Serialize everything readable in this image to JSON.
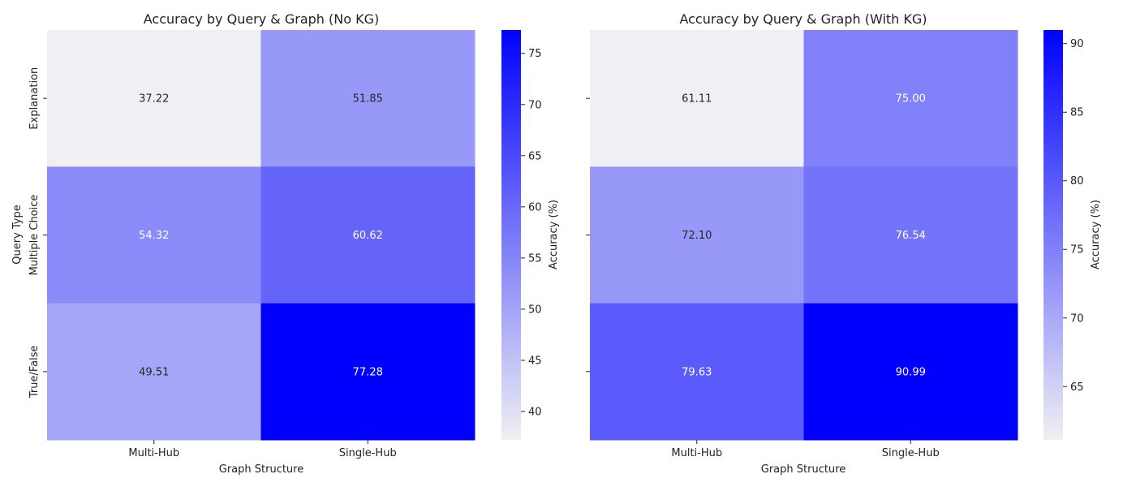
{
  "chart_data": [
    {
      "type": "heatmap",
      "title": "Accuracy by Query & Graph (No KG)",
      "xlabel": "Graph Structure",
      "ylabel": "Query Type",
      "x_categories": [
        "Multi-Hub",
        "Single-Hub"
      ],
      "y_categories": [
        "Explanation",
        "Multiple Choice",
        "True/False"
      ],
      "values": [
        [
          37.22,
          51.85
        ],
        [
          54.32,
          60.62
        ],
        [
          49.51,
          77.28
        ]
      ],
      "colorbar": {
        "label": "Accuracy (%)",
        "min": 37.22,
        "max": 77.28,
        "ticks": [
          40,
          45,
          50,
          55,
          60,
          65,
          70,
          75
        ]
      },
      "colormap": {
        "low": "#f0f0f4",
        "high": "#0000ff"
      }
    },
    {
      "type": "heatmap",
      "title": "Accuracy by Query & Graph (With KG)",
      "xlabel": "Graph Structure",
      "ylabel": "",
      "x_categories": [
        "Multi-Hub",
        "Single-Hub"
      ],
      "y_categories": [
        "Explanation",
        "Multiple Choice",
        "True/False"
      ],
      "values": [
        [
          61.11,
          75.0
        ],
        [
          72.1,
          76.54
        ],
        [
          79.63,
          90.99
        ]
      ],
      "colorbar": {
        "label": "Accuracy (%)",
        "min": 61.11,
        "max": 90.99,
        "ticks": [
          65,
          70,
          75,
          80,
          85,
          90
        ]
      },
      "colormap": {
        "low": "#f0f0f4",
        "high": "#0000ff"
      }
    }
  ]
}
